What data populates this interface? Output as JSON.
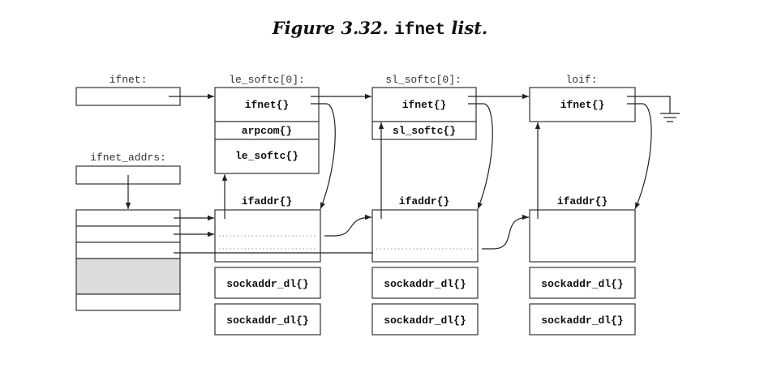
{
  "title": {
    "prefix": "Figure 3.32. ",
    "code": "ifnet",
    "suffix": " list."
  },
  "labels": {
    "ifnet": "ifnet:",
    "le_softc": "le_softc[0]:",
    "sl_softc": "sl_softc[0]:",
    "loif": "loif:",
    "ifnet_addrs": "ifnet_addrs:"
  },
  "fields": {
    "ifnet_1": "ifnet{}",
    "arpcom": "arpcom{}",
    "le_softc": "le_softc{}",
    "ifnet_2": "ifnet{}",
    "sl_softc": "sl_softc{}",
    "ifnet_3": "ifnet{}",
    "ifaddr_1": "ifaddr{}",
    "ifaddr_2": "ifaddr{}",
    "ifaddr_3": "ifaddr{}",
    "sdl_1a": "sockaddr_dl{}",
    "sdl_1b": "sockaddr_dl{}",
    "sdl_2a": "sockaddr_dl{}",
    "sdl_2b": "sockaddr_dl{}",
    "sdl_3a": "sockaddr_dl{}",
    "sdl_3b": "sockaddr_dl{}"
  }
}
